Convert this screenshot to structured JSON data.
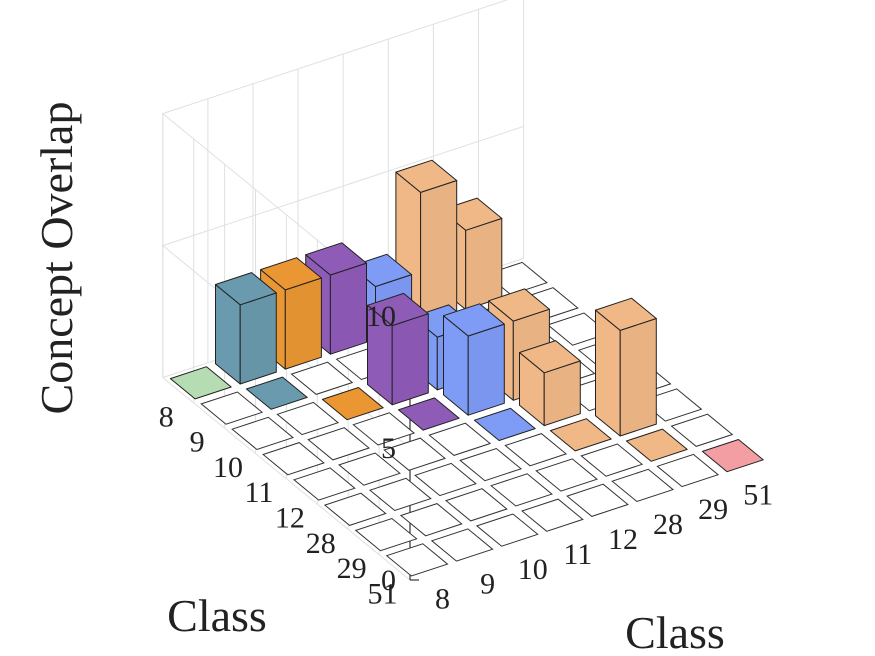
{
  "chart_data": {
    "type": "bar3d",
    "xlabel": "Class",
    "ylabel": "Class",
    "zlabel": "Concept Overlap",
    "x_categories": [
      "8",
      "9",
      "10",
      "11",
      "12",
      "28",
      "29",
      "51"
    ],
    "y_categories": [
      "8",
      "9",
      "10",
      "11",
      "12",
      "28",
      "29",
      "51"
    ],
    "zlim": [
      0,
      10
    ],
    "zticks": [
      0,
      5,
      10
    ],
    "grid": true,
    "values": [
      [
        1,
        3,
        3,
        3,
        2,
        5,
        3,
        0
      ],
      [
        0,
        1,
        0,
        0,
        0,
        0,
        0,
        0
      ],
      [
        0,
        0,
        1,
        3,
        2,
        0,
        0,
        0
      ],
      [
        0,
        0,
        0,
        1,
        3,
        3,
        0,
        0
      ],
      [
        0,
        0,
        0,
        0,
        1,
        2,
        0,
        0
      ],
      [
        0,
        0,
        0,
        0,
        0,
        1,
        4,
        0
      ],
      [
        0,
        0,
        0,
        0,
        0,
        0,
        1,
        0
      ],
      [
        0,
        0,
        0,
        0,
        0,
        0,
        0,
        1
      ]
    ],
    "colors": [
      "#b5dcb2",
      "#6a9aad",
      "#ea9632",
      "#8e5bb7",
      "#7e9bf5",
      "#f0b887",
      "#f0b887",
      "#f29ea3"
    ]
  }
}
